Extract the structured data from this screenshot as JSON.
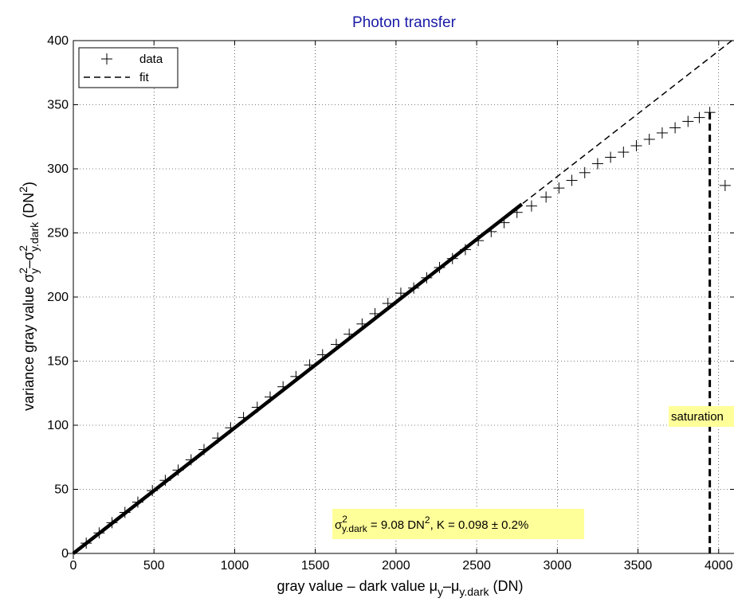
{
  "chart_data": {
    "type": "scatter",
    "title": "Photon transfer",
    "xlim": [
      0,
      4100
    ],
    "ylim": [
      0,
      400
    ],
    "xticks": [
      0,
      500,
      1000,
      1500,
      2000,
      2500,
      3000,
      3500,
      4000
    ],
    "yticks": [
      0,
      50,
      100,
      150,
      200,
      250,
      300,
      350,
      400
    ],
    "grid": true,
    "legend_position": "top-left",
    "legend": [
      {
        "marker": "+",
        "label": "data"
      },
      {
        "marker": "dashed",
        "label": "fit"
      }
    ],
    "xlabel": {
      "main": "gray value – dark value  μ",
      "sub1": "y",
      "mid": "–μ",
      "sub2": "y.dark",
      "tail": " (DN)"
    },
    "ylabel": {
      "main": "variance gray value  σ",
      "sup1": "2",
      "sub1": "y",
      "mid": "–σ",
      "sup2": "2",
      "sub2": "y.dark",
      "tail": " (DN",
      "sup3": "2",
      "end": ")"
    },
    "series": [
      {
        "name": "data",
        "marker": "+",
        "x": [
          0,
          80,
          160,
          240,
          320,
          400,
          490,
          570,
          650,
          730,
          810,
          895,
          975,
          1055,
          1140,
          1220,
          1300,
          1380,
          1465,
          1545,
          1630,
          1710,
          1790,
          1870,
          1950,
          2030,
          2110,
          2190,
          2270,
          2350,
          2430,
          2510,
          2590,
          2670,
          2750,
          2840,
          2930,
          3010,
          3090,
          3170,
          3250,
          3330,
          3410,
          3490,
          3570,
          3650,
          3730,
          3810,
          3880,
          3945,
          4040
        ],
        "y": [
          0,
          8,
          16,
          24,
          32,
          40,
          49,
          57,
          65,
          73,
          81,
          90,
          98,
          106,
          114,
          122,
          130,
          138,
          147,
          155,
          163,
          171,
          179,
          187,
          195,
          203,
          207,
          215,
          223,
          230,
          237,
          244,
          251,
          258,
          266,
          271,
          278,
          285,
          291,
          297,
          304,
          309,
          313,
          318,
          323,
          328,
          332,
          337,
          340,
          344,
          287
        ]
      },
      {
        "name": "fit",
        "style": "dashed",
        "x": [
          0,
          4100
        ],
        "y": [
          0,
          401.8
        ]
      }
    ],
    "fit_region": {
      "x": [
        0,
        2780
      ],
      "y": [
        0,
        272.4
      ]
    },
    "saturation_x": 3945,
    "annotations": {
      "dark": {
        "sigma": "σ",
        "sup": "2",
        "sub": "y.dark",
        "text1": " = 9.08 DN",
        "sup2": "2",
        "text2": ", K = 0.098 ± 0.2%"
      },
      "saturation": "saturation"
    },
    "colors": {
      "title": "#1a1aa6",
      "annotation_bg": "#ffff99",
      "data": "#000000",
      "grid": "#000000"
    }
  }
}
